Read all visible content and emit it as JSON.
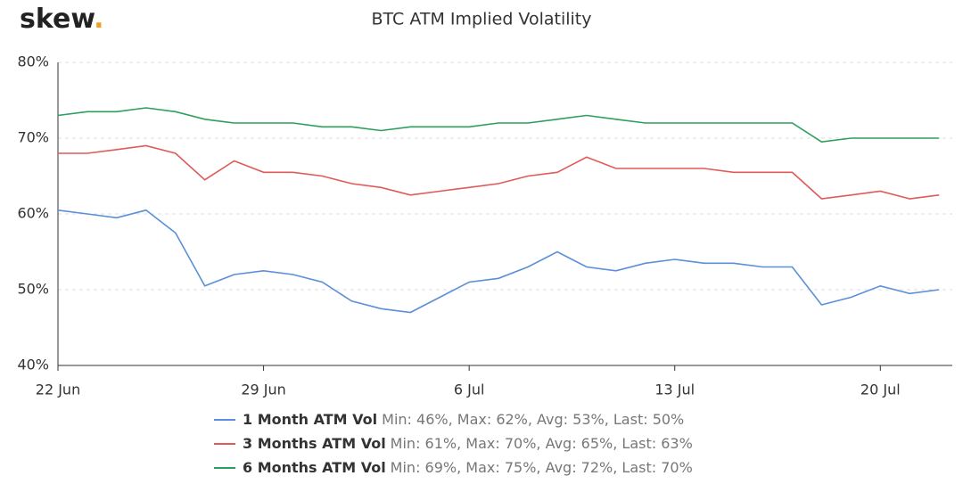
{
  "logo": "skew",
  "logo_dot": ".",
  "chart_data": {
    "type": "line",
    "title": "BTC ATM Implied Volatility",
    "categories": [
      "22 Jun",
      null,
      null,
      null,
      null,
      null,
      null,
      "29 Jun",
      null,
      null,
      null,
      null,
      null,
      null,
      "6 Jul",
      null,
      null,
      null,
      null,
      null,
      null,
      "13 Jul",
      null,
      null,
      null,
      null,
      null,
      null,
      "20 Jul",
      null,
      null
    ],
    "series": [
      {
        "name": "1 Month ATM Vol",
        "stats": "Min: 46%, Max: 62%, Avg: 53%, Last: 50%",
        "color": "#5b8fd9",
        "values": [
          60.5,
          60,
          59.5,
          60.5,
          57.5,
          50.5,
          52,
          52.5,
          52,
          51,
          48.5,
          47.5,
          47,
          49,
          51,
          51.5,
          53,
          55,
          53,
          52.5,
          53.5,
          54,
          53.5,
          53.5,
          53,
          53,
          48,
          49,
          50.5,
          49.5,
          50
        ]
      },
      {
        "name": "3 Months ATM Vol",
        "stats": "Min: 61%, Max: 70%, Avg: 65%, Last: 63%",
        "color": "#e05a5a",
        "values": [
          68,
          68,
          68.5,
          69,
          68,
          64.5,
          67,
          65.5,
          65.5,
          65,
          64,
          63.5,
          62.5,
          63,
          63.5,
          64,
          65,
          65.5,
          67.5,
          66,
          66,
          66,
          66,
          65.5,
          65.5,
          65.5,
          62,
          62.5,
          63,
          62,
          62.5
        ]
      },
      {
        "name": "6 Months ATM Vol",
        "stats": "Min: 69%, Max: 75%, Avg: 72%, Last: 70%",
        "color": "#2e9e5e",
        "values": [
          73,
          73.5,
          73.5,
          74,
          73.5,
          72.5,
          72,
          72,
          72,
          71.5,
          71.5,
          71,
          71.5,
          71.5,
          71.5,
          72,
          72,
          72.5,
          73,
          72.5,
          72,
          72,
          72,
          72,
          72,
          72,
          69.5,
          70,
          70,
          70,
          70
        ]
      }
    ],
    "ylim": [
      40,
      80
    ],
    "yticks": [
      {
        "value": 40,
        "label": "40%"
      },
      {
        "value": 50,
        "label": "50%"
      },
      {
        "value": 60,
        "label": "60%"
      },
      {
        "value": 70,
        "label": "70%"
      },
      {
        "value": 80,
        "label": "80%"
      }
    ],
    "grid": true
  }
}
